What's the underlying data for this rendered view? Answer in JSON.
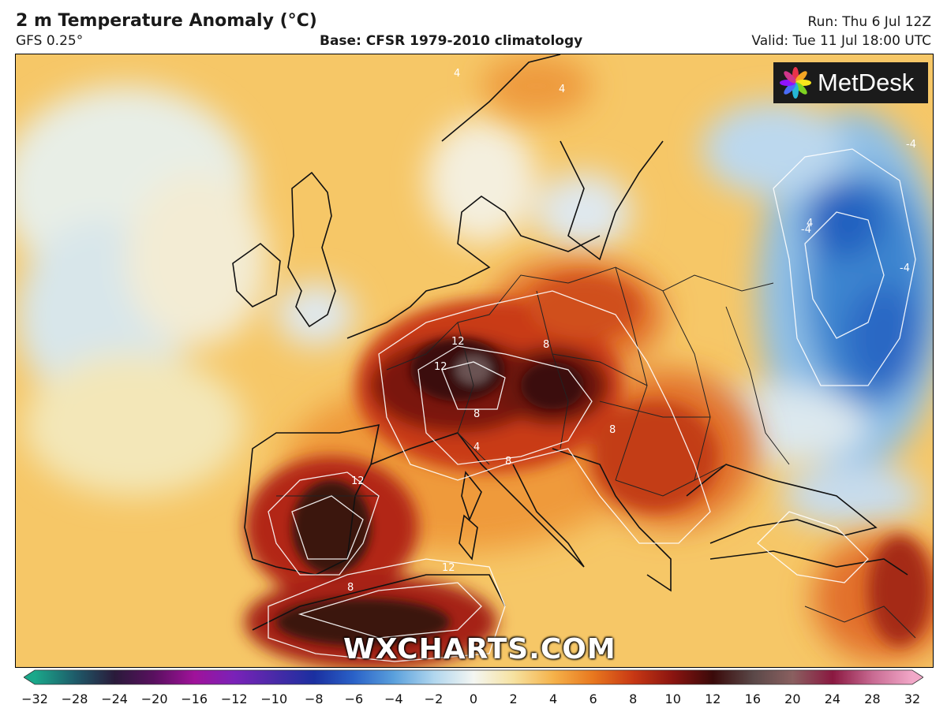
{
  "header": {
    "title": "2 m Temperature Anomaly (°C)",
    "model": "GFS 0.25°",
    "base": "Base: CFSR 1979-2010 climatology",
    "run": "Run: Thu 6 Jul 12Z",
    "valid": "Valid: Tue 11 Jul 18:00 UTC"
  },
  "logo": {
    "text": "MetDesk"
  },
  "watermark": {
    "text": "WXCHARTS.COM"
  },
  "colorbar": {
    "ticks": [
      "−32",
      "−28",
      "−24",
      "−20",
      "−16",
      "−12",
      "−10",
      "−8",
      "−6",
      "−4",
      "−2",
      "0",
      "2",
      "4",
      "6",
      "8",
      "10",
      "12",
      "16",
      "20",
      "24",
      "28",
      "32"
    ],
    "colors": [
      "#1aa88a",
      "#1e5c6a",
      "#2a1a3a",
      "#5a1060",
      "#a0129a",
      "#7a22b8",
      "#4a2aa8",
      "#1a2fa0",
      "#2a62c8",
      "#5aa0dc",
      "#b0d6ee",
      "#f4f6f2",
      "#f6e2a0",
      "#f5b24a",
      "#e8771e",
      "#c83814",
      "#8a1410",
      "#3a0a0a",
      "#5a4848",
      "#8a6060",
      "#8a1840",
      "#c86a92",
      "#f2a8c8"
    ]
  },
  "map": {
    "region": "Europe",
    "contour_labels": [
      "12",
      "12",
      "12",
      "12",
      "8",
      "8",
      "8",
      "8",
      "8",
      "4",
      "4",
      "4",
      "4",
      "-4",
      "-4",
      "-4"
    ]
  }
}
